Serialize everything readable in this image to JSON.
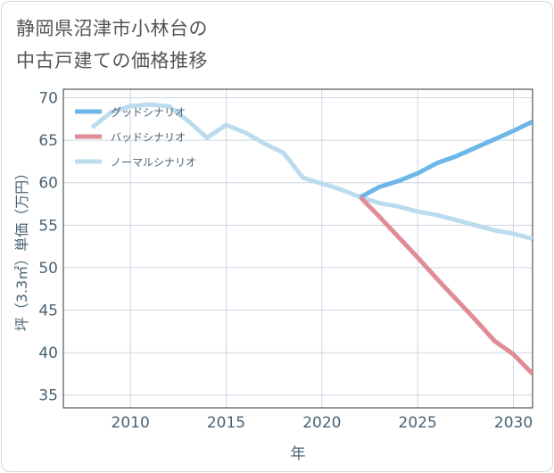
{
  "title_lines": [
    "静岡県沼津市小林台の",
    "中古戸建ての価格推移"
  ],
  "colors": {
    "good": "#6cb7e8",
    "bad": "#e08c95",
    "normal": "#bcdcee",
    "grid": "#cbd6e2",
    "axis_text": "#4a6273",
    "plot_border": "#333333"
  },
  "chart_data": {
    "type": "line",
    "xlabel": "年",
    "ylabel": "坪（3.3㎡）単価（万円）",
    "xlim": [
      2006.5,
      2031
    ],
    "ylim": [
      33.5,
      71
    ],
    "xticks": [
      2010,
      2015,
      2020,
      2025,
      2030
    ],
    "yticks": [
      35,
      40,
      45,
      50,
      55,
      60,
      65,
      70
    ],
    "grid": true,
    "legend_position": "top-left",
    "series": [
      {
        "name": "グッドシナリオ",
        "color_key": "good",
        "x": [
          2022,
          2023,
          2024,
          2025,
          2026,
          2027,
          2028,
          2029,
          2030,
          2031
        ],
        "y": [
          58.3,
          59.5,
          60.2,
          61.1,
          62.3,
          63.1,
          64.1,
          65.1,
          66.1,
          67.2
        ]
      },
      {
        "name": "バッドシナリオ",
        "color_key": "bad",
        "x": [
          2022,
          2023,
          2024,
          2025,
          2026,
          2027,
          2028,
          2029,
          2030,
          2031
        ],
        "y": [
          58.3,
          56.0,
          53.6,
          51.2,
          48.7,
          46.3,
          43.9,
          41.4,
          39.8,
          37.5
        ]
      },
      {
        "name": "ノーマルシナリオ",
        "color_key": "normal",
        "x": [
          2008,
          2009,
          2010,
          2011,
          2012,
          2013,
          2014,
          2015,
          2016,
          2017,
          2018,
          2019,
          2020,
          2021,
          2022,
          2023,
          2024,
          2025,
          2026,
          2027,
          2028,
          2029,
          2030,
          2031
        ],
        "y": [
          66.5,
          68.3,
          69.0,
          69.2,
          69.0,
          67.3,
          65.3,
          66.8,
          65.9,
          64.6,
          63.5,
          60.6,
          59.9,
          59.2,
          58.3,
          57.6,
          57.2,
          56.6,
          56.2,
          55.6,
          55.0,
          54.4,
          54.0,
          53.4
        ]
      }
    ]
  }
}
